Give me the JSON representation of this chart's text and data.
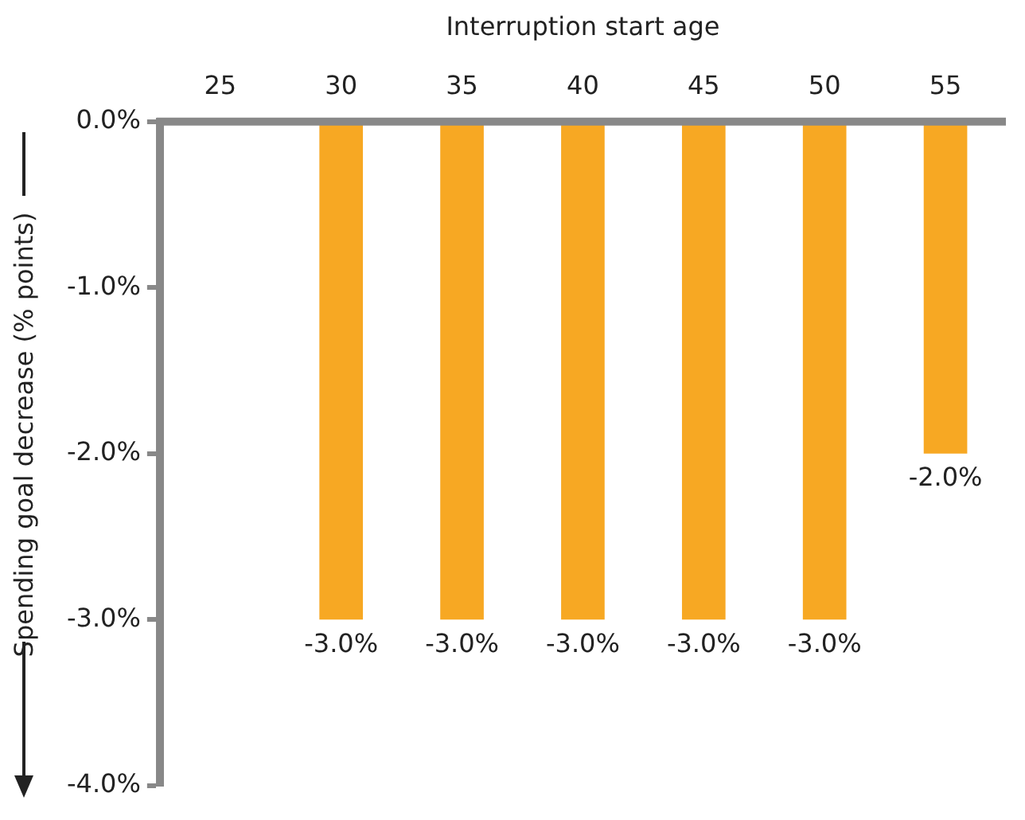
{
  "chart_data": {
    "type": "bar",
    "xlabel": "Interruption start age",
    "ylabel": "Spending goal decrease (% points)",
    "categories": [
      "25",
      "30",
      "35",
      "40",
      "45",
      "50",
      "55"
    ],
    "values": [
      null,
      -3.0,
      -3.0,
      -3.0,
      -3.0,
      -3.0,
      -2.0
    ],
    "value_labels": [
      null,
      "-3.0%",
      "-3.0%",
      "-3.0%",
      "-3.0%",
      "-3.0%",
      "-2.0%"
    ],
    "color": "#f7a823",
    "ylim": [
      -4,
      0
    ],
    "yticks": [
      {
        "value": 0,
        "label": "0.0%"
      },
      {
        "value": -1,
        "label": "-1.0%"
      },
      {
        "value": -2,
        "label": "-2.0%"
      },
      {
        "value": -3,
        "label": "-3.0%"
      },
      {
        "value": -4,
        "label": "-4.0%"
      }
    ],
    "grid": false,
    "legend": false
  }
}
